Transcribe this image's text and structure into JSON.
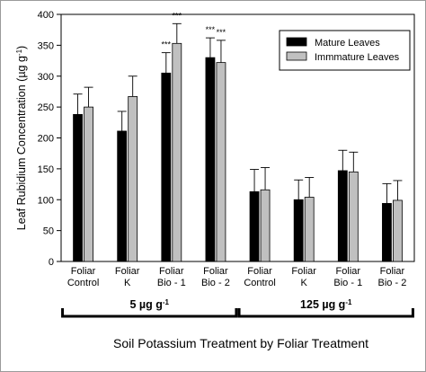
{
  "chart_data": {
    "type": "bar",
    "ylabel": "Leaf Rubidium Concentration (µg g-1)",
    "ylabel_main": "Leaf Rubidium Concentration (µg g",
    "ylabel_sup": "-1",
    "ylabel_tail": ")",
    "xlabel": "Soil Potassium Treatment by Foliar Treatment",
    "ylim": [
      0,
      400
    ],
    "yticks": [
      0,
      50,
      100,
      150,
      200,
      250,
      300,
      350,
      400
    ],
    "grid": false,
    "legend_position": "top-right",
    "categories": [
      [
        "Foliar",
        "Control"
      ],
      [
        "Foliar",
        "K"
      ],
      [
        "Foliar",
        "Bio - 1"
      ],
      [
        "Foliar",
        "Bio - 2"
      ],
      [
        "Foliar",
        "Control"
      ],
      [
        "Foliar",
        "K"
      ],
      [
        "Foliar",
        "Bio - 1"
      ],
      [
        "Foliar",
        "Bio - 2"
      ]
    ],
    "series": [
      {
        "name": "Mature Leaves",
        "color": "#000000",
        "values": [
          238,
          211,
          305,
          330,
          113,
          100,
          147,
          94
        ],
        "error": [
          33,
          32,
          33,
          32,
          36,
          32,
          33,
          32
        ],
        "annotations": [
          "",
          "",
          "***",
          "***",
          "",
          "",
          "",
          ""
        ]
      },
      {
        "name": "Immmature Leaves",
        "color": "#c0c0c0",
        "values": [
          250,
          267,
          353,
          322,
          116,
          104,
          145,
          99
        ],
        "error": [
          32,
          33,
          32,
          36,
          36,
          32,
          32,
          32
        ],
        "annotations": [
          "",
          "",
          "***",
          "***",
          "",
          "",
          "",
          ""
        ]
      }
    ],
    "groups": [
      {
        "label": "5 µg g",
        "sup": "-1",
        "category_range": [
          0,
          3
        ]
      },
      {
        "label": "125 µg g",
        "sup": "-1",
        "category_range": [
          4,
          7
        ]
      }
    ]
  }
}
